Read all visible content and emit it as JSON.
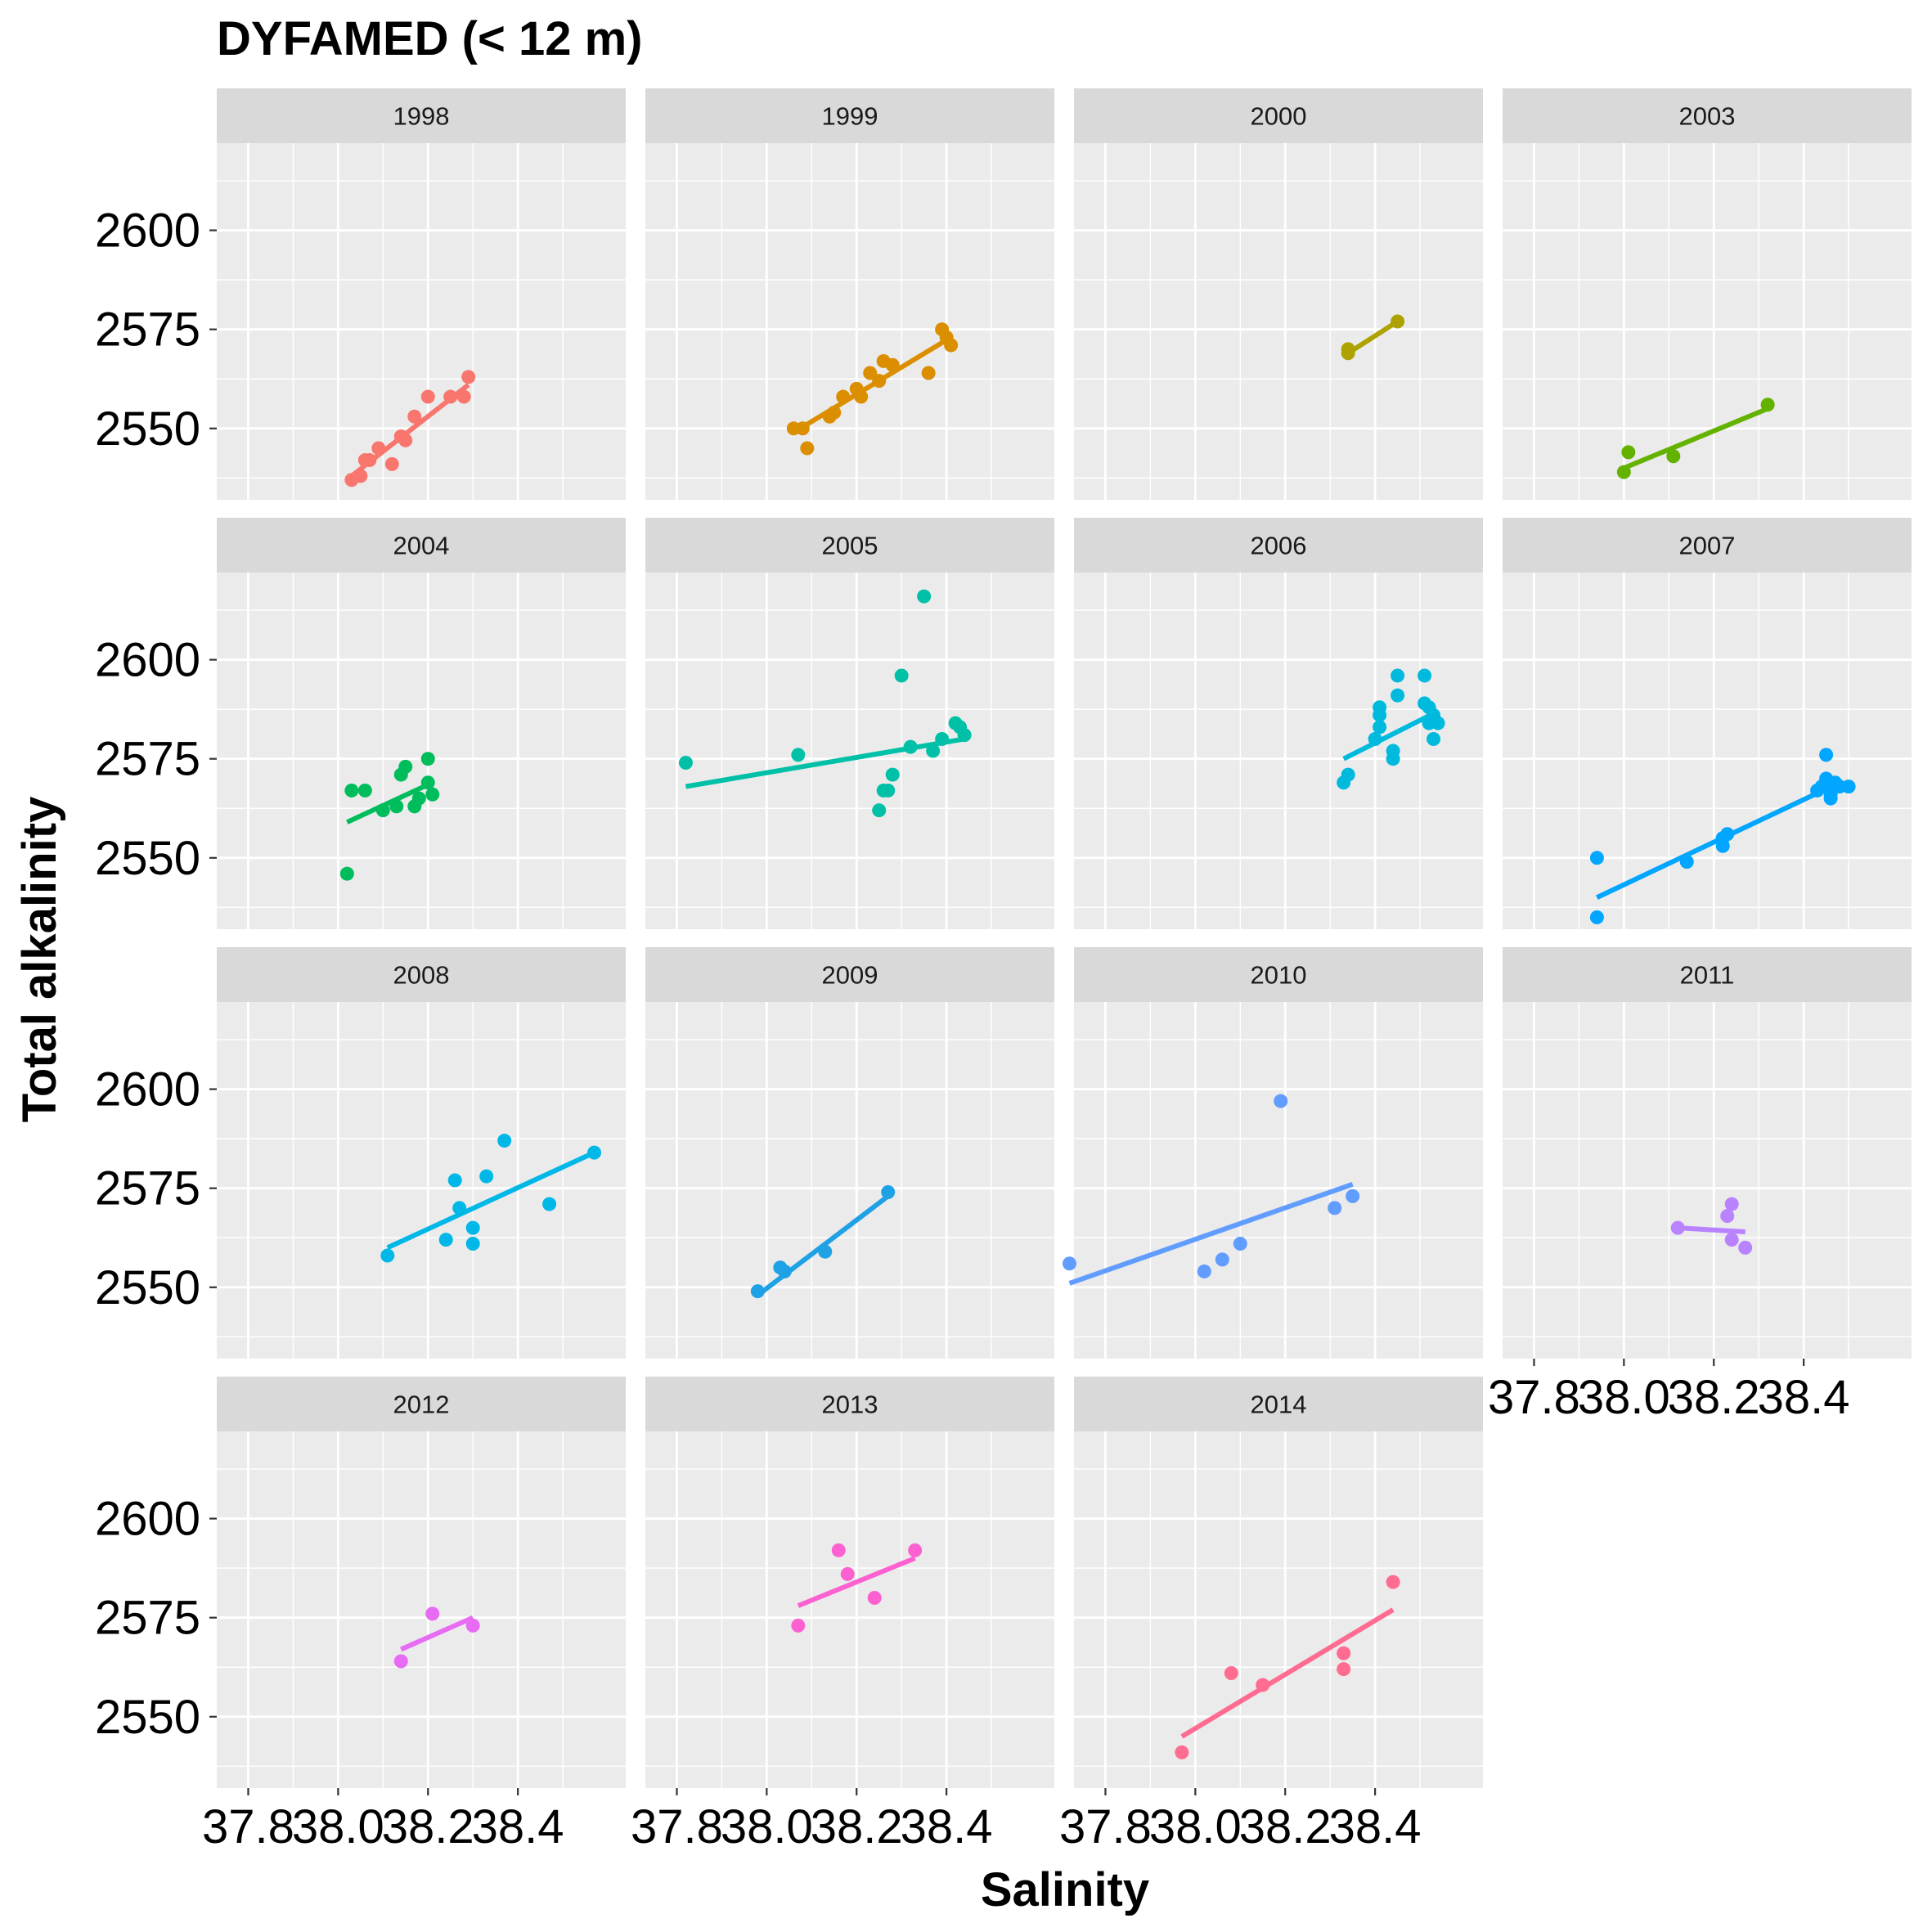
{
  "chart_data": {
    "type": "scatter",
    "title": "DYFAMED (< 12 m)",
    "xlabel": "Salinity",
    "ylabel": "Total alkalinity",
    "xlim": [
      37.73,
      38.64
    ],
    "ylim": [
      2532,
      2622
    ],
    "x_ticks": [
      37.8,
      38.0,
      38.2,
      38.4
    ],
    "x_tick_labels": [
      "37.8",
      "38.0",
      "38.2",
      "38.4"
    ],
    "y_ticks": [
      2550,
      2575,
      2600
    ],
    "y_tick_labels": [
      "2550",
      "2575",
      "2600"
    ],
    "grid": true,
    "legend": "none",
    "facet_layout": {
      "columns": 4,
      "rows": 4
    },
    "panels": [
      {
        "label": "1998",
        "color": "#F8766D",
        "points": [
          [
            38.03,
            2537
          ],
          [
            38.05,
            2538
          ],
          [
            38.06,
            2542
          ],
          [
            38.07,
            2542
          ],
          [
            38.09,
            2545
          ],
          [
            38.12,
            2541
          ],
          [
            38.14,
            2548
          ],
          [
            38.15,
            2547
          ],
          [
            38.17,
            2553
          ],
          [
            38.2,
            2558
          ],
          [
            38.25,
            2558
          ],
          [
            38.28,
            2558
          ],
          [
            38.29,
            2563
          ]
        ],
        "fit": [
          [
            38.03,
            2538
          ],
          [
            38.29,
            2561
          ]
        ]
      },
      {
        "label": "1999",
        "color": "#DB8E00",
        "points": [
          [
            38.06,
            2550
          ],
          [
            38.08,
            2550
          ],
          [
            38.09,
            2545
          ],
          [
            38.14,
            2553
          ],
          [
            38.15,
            2554
          ],
          [
            38.17,
            2558
          ],
          [
            38.2,
            2560
          ],
          [
            38.21,
            2558
          ],
          [
            38.23,
            2564
          ],
          [
            38.25,
            2562
          ],
          [
            38.26,
            2567
          ],
          [
            38.28,
            2566
          ],
          [
            38.36,
            2564
          ],
          [
            38.39,
            2575
          ],
          [
            38.4,
            2573
          ],
          [
            38.41,
            2571
          ]
        ],
        "fit": [
          [
            38.06,
            2549
          ],
          [
            38.41,
            2573
          ]
        ]
      },
      {
        "label": "2000",
        "color": "#AEA200",
        "points": [
          [
            38.34,
            2569
          ],
          [
            38.34,
            2570
          ],
          [
            38.45,
            2577
          ]
        ],
        "fit": [
          [
            38.34,
            2569
          ],
          [
            38.45,
            2577
          ]
        ]
      },
      {
        "label": "2003",
        "color": "#64B200",
        "points": [
          [
            38.0,
            2539
          ],
          [
            38.01,
            2544
          ],
          [
            38.11,
            2543
          ],
          [
            38.32,
            2556
          ]
        ],
        "fit": [
          [
            38.0,
            2540
          ],
          [
            38.32,
            2555
          ]
        ]
      },
      {
        "label": "2004",
        "color": "#00BD5C",
        "points": [
          [
            38.02,
            2546
          ],
          [
            38.03,
            2567
          ],
          [
            38.06,
            2567
          ],
          [
            38.1,
            2562
          ],
          [
            38.13,
            2563
          ],
          [
            38.14,
            2571
          ],
          [
            38.15,
            2573
          ],
          [
            38.17,
            2563
          ],
          [
            38.18,
            2565
          ],
          [
            38.2,
            2569
          ],
          [
            38.2,
            2575
          ],
          [
            38.21,
            2566
          ]
        ],
        "fit": [
          [
            38.02,
            2559
          ],
          [
            38.21,
            2569
          ]
        ]
      },
      {
        "label": "2005",
        "color": "#00C1A7",
        "points": [
          [
            37.82,
            2574
          ],
          [
            38.07,
            2576
          ],
          [
            38.25,
            2562
          ],
          [
            38.26,
            2567
          ],
          [
            38.27,
            2567
          ],
          [
            38.28,
            2571
          ],
          [
            38.3,
            2596
          ],
          [
            38.32,
            2578
          ],
          [
            38.35,
            2616
          ],
          [
            38.37,
            2577
          ],
          [
            38.39,
            2580
          ],
          [
            38.42,
            2584
          ],
          [
            38.43,
            2583
          ],
          [
            38.44,
            2581
          ]
        ],
        "fit": [
          [
            37.82,
            2568
          ],
          [
            38.44,
            2580
          ]
        ]
      },
      {
        "label": "2006",
        "color": "#00BADE",
        "points": [
          [
            38.33,
            2569
          ],
          [
            38.34,
            2571
          ],
          [
            38.4,
            2580
          ],
          [
            38.41,
            2583
          ],
          [
            38.41,
            2586
          ],
          [
            38.41,
            2588
          ],
          [
            38.44,
            2575
          ],
          [
            38.44,
            2577
          ],
          [
            38.45,
            2591
          ],
          [
            38.45,
            2596
          ],
          [
            38.51,
            2596
          ],
          [
            38.51,
            2589
          ],
          [
            38.52,
            2584
          ],
          [
            38.52,
            2588
          ],
          [
            38.53,
            2586
          ],
          [
            38.53,
            2580
          ],
          [
            38.54,
            2584
          ]
        ],
        "fit": [
          [
            38.33,
            2575
          ],
          [
            38.54,
            2587
          ]
        ]
      },
      {
        "label": "2007",
        "color": "#00A6FF",
        "points": [
          [
            37.94,
            2535
          ],
          [
            37.94,
            2550
          ],
          [
            38.14,
            2549
          ],
          [
            38.22,
            2553
          ],
          [
            38.22,
            2555
          ],
          [
            38.23,
            2556
          ],
          [
            38.43,
            2567
          ],
          [
            38.44,
            2568
          ],
          [
            38.45,
            2568
          ],
          [
            38.45,
            2576
          ],
          [
            38.45,
            2570
          ],
          [
            38.46,
            2565
          ],
          [
            38.46,
            2566
          ],
          [
            38.47,
            2569
          ],
          [
            38.48,
            2568
          ],
          [
            38.5,
            2568
          ]
        ],
        "fit": [
          [
            37.94,
            2540
          ],
          [
            38.48,
            2569
          ]
        ]
      },
      {
        "label": "2008",
        "color": "#00B8E7",
        "points": [
          [
            38.11,
            2558
          ],
          [
            38.24,
            2562
          ],
          [
            38.26,
            2577
          ],
          [
            38.27,
            2570
          ],
          [
            38.3,
            2565
          ],
          [
            38.3,
            2561
          ],
          [
            38.33,
            2578
          ],
          [
            38.37,
            2587
          ],
          [
            38.47,
            2571
          ],
          [
            38.57,
            2584
          ]
        ],
        "fit": [
          [
            38.11,
            2560
          ],
          [
            38.57,
            2584
          ]
        ]
      },
      {
        "label": "2009",
        "color": "#1FA1E6",
        "points": [
          [
            37.98,
            2549
          ],
          [
            38.03,
            2555
          ],
          [
            38.04,
            2554
          ],
          [
            38.13,
            2559
          ],
          [
            38.27,
            2574
          ]
        ],
        "fit": [
          [
            37.98,
            2548
          ],
          [
            38.27,
            2573
          ]
        ]
      },
      {
        "label": "2010",
        "color": "#619CFF",
        "points": [
          [
            37.72,
            2556
          ],
          [
            38.02,
            2554
          ],
          [
            38.06,
            2557
          ],
          [
            38.1,
            2561
          ],
          [
            38.19,
            2597
          ],
          [
            38.31,
            2570
          ],
          [
            38.35,
            2573
          ]
        ],
        "fit": [
          [
            37.72,
            2551
          ],
          [
            38.35,
            2576
          ]
        ]
      },
      {
        "label": "2011",
        "color": "#B983FF",
        "points": [
          [
            38.12,
            2565
          ],
          [
            38.23,
            2568
          ],
          [
            38.24,
            2571
          ],
          [
            38.24,
            2562
          ],
          [
            38.27,
            2560
          ]
        ],
        "fit": [
          [
            38.12,
            2565
          ],
          [
            38.27,
            2564
          ]
        ]
      },
      {
        "label": "2012",
        "color": "#E76BF3",
        "points": [
          [
            38.14,
            2564
          ],
          [
            38.21,
            2576
          ],
          [
            38.3,
            2573
          ]
        ],
        "fit": [
          [
            38.14,
            2567
          ],
          [
            38.3,
            2575
          ]
        ]
      },
      {
        "label": "2013",
        "color": "#FD61D1",
        "points": [
          [
            38.07,
            2573
          ],
          [
            38.16,
            2592
          ],
          [
            38.18,
            2586
          ],
          [
            38.24,
            2580
          ],
          [
            38.33,
            2592
          ]
        ],
        "fit": [
          [
            38.07,
            2578
          ],
          [
            38.33,
            2590
          ]
        ]
      },
      {
        "label": "2014",
        "color": "#FF6C91",
        "points": [
          [
            37.97,
            2541
          ],
          [
            38.08,
            2561
          ],
          [
            38.15,
            2558
          ],
          [
            38.33,
            2566
          ],
          [
            38.33,
            2562
          ],
          [
            38.44,
            2584
          ]
        ],
        "fit": [
          [
            37.97,
            2545
          ],
          [
            38.44,
            2577
          ]
        ]
      }
    ]
  }
}
